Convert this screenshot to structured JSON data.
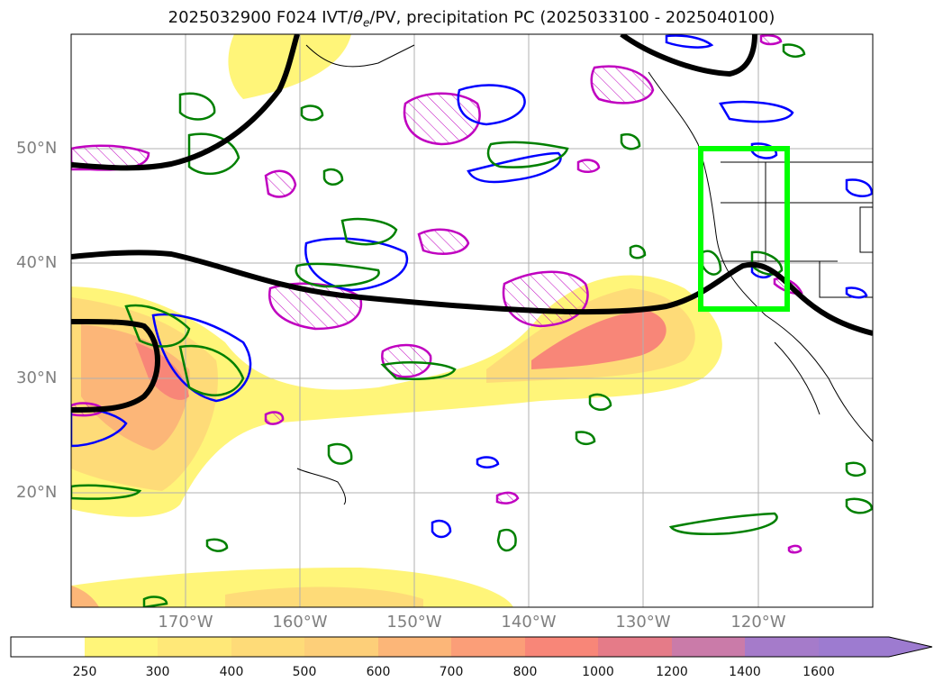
{
  "title_main": "2025032900 F024 IVT/",
  "title_theta": "θ",
  "title_sub": "e",
  "title_rest": "/PV, precipitation PC (2025033100 - 2025040100)",
  "lat_labels": [
    "50°N",
    "40°N",
    "30°N",
    "20°N"
  ],
  "lon_labels": [
    "170°W",
    "160°W",
    "150°W",
    "140°W",
    "130°W",
    "120°W"
  ],
  "colorbar": {
    "tick_labels": [
      "250",
      "300",
      "400",
      "500",
      "600",
      "700",
      "800",
      "1000",
      "1200",
      "1400",
      "1600"
    ],
    "colors": [
      "#ffffff",
      "#fff579",
      "#ffe878",
      "#fedb78",
      "#fdcf79",
      "#fcb678",
      "#fb9e78",
      "#f88678",
      "#e57b88",
      "#ca7ba9",
      "#a57bca"
    ],
    "extend": "max"
  },
  "overlays": {
    "contour_colors": {
      "ivt": "#ff0000",
      "green_contours": "#008000",
      "blue_contours": "#0000ff",
      "magenta_contours": "#c000c0",
      "thick_line": "#000000",
      "highlight_box": "#00ff00"
    }
  }
}
